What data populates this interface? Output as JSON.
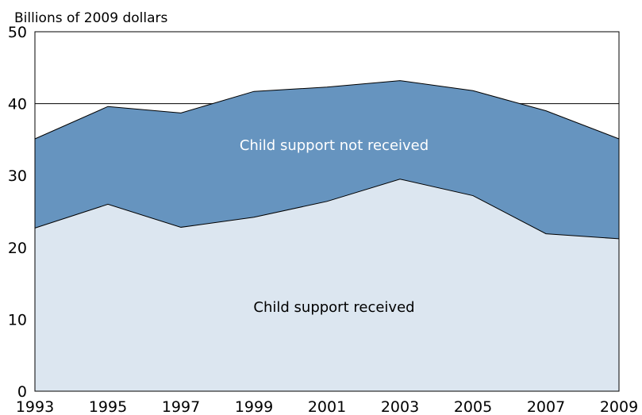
{
  "chart_data": {
    "type": "area",
    "stacked": true,
    "ylabel": "Billions of 2009 dollars",
    "xlabel": "",
    "x": [
      1993,
      1995,
      1997,
      1999,
      2001,
      2003,
      2005,
      2007,
      2009
    ],
    "x_ticks": [
      "1993",
      "1995",
      "1997",
      "1999",
      "2001",
      "2003",
      "2005",
      "2007",
      "2009"
    ],
    "y_ticks": [
      "0",
      "10",
      "20",
      "30",
      "40",
      "50"
    ],
    "ylim": [
      0,
      50
    ],
    "xlim": [
      1993,
      2009
    ],
    "grid": "horizontal line at 40 only",
    "series": [
      {
        "name": "Child support received",
        "values": [
          22.7,
          26.0,
          22.8,
          24.2,
          26.4,
          29.5,
          27.2,
          21.9,
          21.2
        ],
        "color": "#dce6f0"
      },
      {
        "name": "Child support not received",
        "values": [
          12.4,
          13.6,
          15.9,
          17.5,
          15.9,
          13.7,
          14.6,
          17.1,
          13.9
        ],
        "color": "#6694bf"
      }
    ],
    "totals": [
      35.1,
      39.6,
      38.7,
      41.7,
      42.3,
      43.2,
      41.8,
      39.0,
      35.1
    ]
  }
}
